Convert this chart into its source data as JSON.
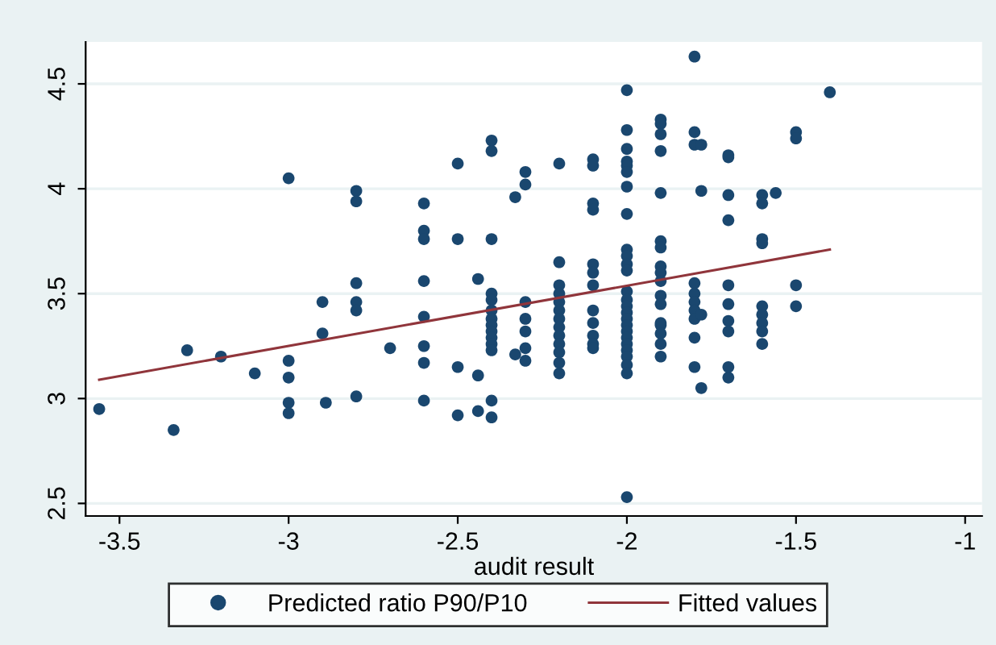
{
  "chart_data": {
    "type": "scatter",
    "xlabel": "audit result",
    "xlim": [
      -3.6,
      -0.95
    ],
    "ylim": [
      2.44,
      4.7
    ],
    "xticks": [
      -3.5,
      -3,
      -2.5,
      -2,
      -1.5,
      -1
    ],
    "yticks": [
      2.5,
      3,
      3.5,
      4,
      4.5
    ],
    "grid": "y",
    "legend": "bottom",
    "marker": "circle",
    "series": [
      {
        "name": "Predicted ratio P90/P10",
        "color": "#1a476f",
        "x": [
          -3.56,
          -3.34,
          -3.3,
          -3.2,
          -3.1,
          -3.0,
          -3.0,
          -3.0,
          -3.0,
          -3.0,
          -2.9,
          -2.9,
          -2.89,
          -2.8,
          -2.8,
          -2.8,
          -2.8,
          -2.8,
          -2.8,
          -2.7,
          -2.6,
          -2.6,
          -2.6,
          -2.6,
          -2.6,
          -2.6,
          -2.6,
          -2.6,
          -2.5,
          -2.5,
          -2.5,
          -2.5,
          -2.44,
          -2.44,
          -2.44,
          -2.4,
          -2.4,
          -2.4,
          -2.4,
          -2.4,
          -2.4,
          -2.4,
          -2.4,
          -2.4,
          -2.4,
          -2.4,
          -2.4,
          -2.4,
          -2.4,
          -2.33,
          -2.33,
          -2.3,
          -2.3,
          -2.3,
          -2.3,
          -2.3,
          -2.3,
          -2.3,
          -2.2,
          -2.2,
          -2.2,
          -2.2,
          -2.2,
          -2.2,
          -2.2,
          -2.2,
          -2.2,
          -2.2,
          -2.2,
          -2.2,
          -2.2,
          -2.1,
          -2.1,
          -2.1,
          -2.1,
          -2.1,
          -2.1,
          -2.1,
          -2.1,
          -2.1,
          -2.1,
          -2.1,
          -2.1,
          -2.0,
          -2.0,
          -2.0,
          -2.0,
          -2.0,
          -2.0,
          -2.0,
          -2.0,
          -2.0,
          -2.0,
          -2.0,
          -2.0,
          -2.0,
          -2.0,
          -2.0,
          -2.0,
          -2.0,
          -2.0,
          -2.0,
          -2.0,
          -2.0,
          -2.0,
          -2.0,
          -2.0,
          -2.0,
          -2.0,
          -1.9,
          -1.9,
          -1.9,
          -1.9,
          -1.9,
          -1.9,
          -1.9,
          -1.9,
          -1.9,
          -1.9,
          -1.9,
          -1.9,
          -1.9,
          -1.9,
          -1.9,
          -1.9,
          -1.9,
          -1.8,
          -1.8,
          -1.8,
          -1.8,
          -1.8,
          -1.8,
          -1.8,
          -1.8,
          -1.8,
          -1.8,
          -1.78,
          -1.78,
          -1.78,
          -1.78,
          -1.7,
          -1.7,
          -1.7,
          -1.7,
          -1.7,
          -1.7,
          -1.7,
          -1.7,
          -1.7,
          -1.7,
          -1.6,
          -1.6,
          -1.6,
          -1.6,
          -1.6,
          -1.6,
          -1.6,
          -1.6,
          -1.6,
          -1.56,
          -1.5,
          -1.5,
          -1.5,
          -1.5,
          -1.4
        ],
        "values": [
          2.95,
          2.85,
          3.23,
          3.2,
          3.12,
          4.05,
          3.18,
          3.1,
          2.98,
          2.93,
          3.46,
          3.31,
          2.98,
          3.99,
          3.94,
          3.55,
          3.46,
          3.42,
          3.01,
          3.24,
          3.93,
          3.8,
          3.76,
          3.56,
          3.39,
          3.25,
          3.17,
          2.99,
          4.12,
          3.76,
          3.15,
          2.92,
          3.57,
          3.11,
          2.94,
          4.23,
          4.18,
          3.76,
          3.5,
          3.47,
          3.42,
          3.38,
          3.35,
          3.32,
          3.29,
          3.26,
          3.23,
          2.99,
          2.91,
          3.96,
          3.21,
          4.08,
          4.02,
          3.46,
          3.38,
          3.32,
          3.24,
          3.18,
          4.12,
          3.65,
          3.54,
          3.5,
          3.46,
          3.42,
          3.38,
          3.34,
          3.3,
          3.26,
          3.22,
          3.17,
          3.12,
          4.14,
          4.11,
          3.93,
          3.9,
          3.64,
          3.6,
          3.54,
          3.42,
          3.36,
          3.3,
          3.26,
          3.24,
          4.47,
          4.28,
          4.19,
          4.13,
          4.11,
          4.08,
          4.01,
          3.88,
          3.71,
          3.68,
          3.64,
          3.61,
          3.51,
          3.47,
          3.44,
          3.41,
          3.38,
          3.35,
          3.32,
          3.29,
          3.26,
          3.23,
          3.2,
          3.16,
          3.12,
          2.53,
          4.33,
          4.31,
          4.26,
          4.18,
          3.98,
          3.75,
          3.72,
          3.63,
          3.6,
          3.56,
          3.49,
          3.45,
          3.36,
          3.35,
          3.31,
          3.26,
          3.2,
          4.63,
          4.27,
          4.21,
          3.55,
          3.5,
          3.46,
          3.42,
          3.38,
          3.29,
          3.15,
          4.21,
          3.99,
          3.4,
          3.05,
          4.16,
          4.15,
          3.97,
          3.85,
          3.54,
          3.45,
          3.37,
          3.32,
          3.15,
          3.1,
          3.97,
          3.93,
          3.76,
          3.74,
          3.44,
          3.4,
          3.36,
          3.32,
          3.26,
          3.98,
          4.27,
          4.24,
          3.54,
          3.44,
          4.46
        ]
      },
      {
        "name": "Fitted values",
        "type": "line",
        "color": "#90353b",
        "marker": "none",
        "line_style": "solid",
        "x": [
          -3.56,
          -1.4
        ],
        "values": [
          3.09,
          3.71
        ]
      }
    ]
  }
}
